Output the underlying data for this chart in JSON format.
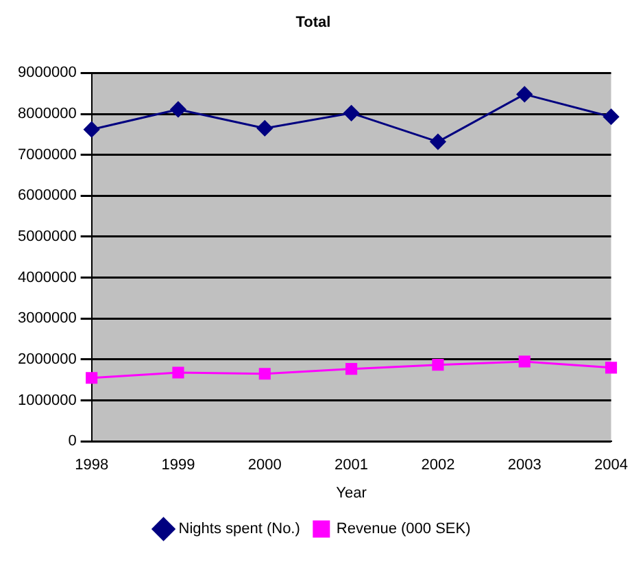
{
  "chart_data": {
    "type": "line",
    "title": "Total",
    "xlabel": "Year",
    "categories": [
      "1998",
      "1999",
      "2000",
      "2001",
      "2002",
      "2003",
      "2004"
    ],
    "series": [
      {
        "name": "Nights spent (No.)",
        "color": "#000080",
        "marker": "diamond",
        "values": [
          7620000,
          8110000,
          7650000,
          8020000,
          7320000,
          8480000,
          7930000
        ]
      },
      {
        "name": "Revenue (000 SEK)",
        "color": "#ff00ff",
        "marker": "square",
        "values": [
          1550000,
          1680000,
          1650000,
          1770000,
          1870000,
          1950000,
          1800000
        ]
      }
    ],
    "ylim": [
      0,
      9000000
    ],
    "yticks": [
      0,
      1000000,
      2000000,
      3000000,
      4000000,
      5000000,
      6000000,
      7000000,
      8000000,
      9000000
    ],
    "grid": "y",
    "legend": "bottom"
  }
}
